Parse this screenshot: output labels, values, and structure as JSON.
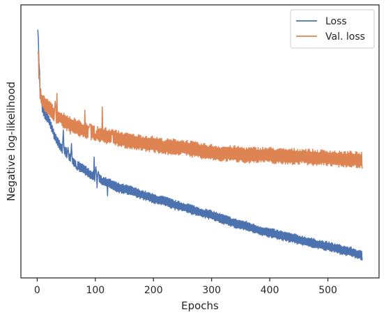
{
  "chart_data": {
    "type": "line",
    "title": "",
    "xlabel": "Epochs",
    "ylabel": "Negative log-likelihood",
    "xlim": [
      -28,
      588
    ],
    "ylim": [
      0,
      1
    ],
    "x_ticks": [
      0,
      100,
      200,
      300,
      400,
      500
    ],
    "y_tick_labels_shown": false,
    "grid": false,
    "legend_position": "top-right",
    "series": [
      {
        "name": "Loss",
        "color": "#4c72b0",
        "oscillation_amplitude": 0.018,
        "keypoints": [
          [
            1,
            0.92
          ],
          [
            3,
            0.8
          ],
          [
            5,
            0.7
          ],
          [
            8,
            0.63
          ],
          [
            12,
            0.6
          ],
          [
            16,
            0.59
          ],
          [
            20,
            0.58
          ],
          [
            25,
            0.55
          ],
          [
            30,
            0.52
          ],
          [
            40,
            0.48
          ],
          [
            50,
            0.46
          ],
          [
            60,
            0.43
          ],
          [
            70,
            0.41
          ],
          [
            80,
            0.4
          ],
          [
            90,
            0.38
          ],
          [
            100,
            0.37
          ],
          [
            110,
            0.36
          ],
          [
            120,
            0.35
          ],
          [
            140,
            0.33
          ],
          [
            160,
            0.32
          ],
          [
            180,
            0.305
          ],
          [
            200,
            0.29
          ],
          [
            220,
            0.28
          ],
          [
            240,
            0.265
          ],
          [
            260,
            0.255
          ],
          [
            280,
            0.24
          ],
          [
            300,
            0.23
          ],
          [
            320,
            0.215
          ],
          [
            340,
            0.2
          ],
          [
            360,
            0.19
          ],
          [
            380,
            0.175
          ],
          [
            400,
            0.165
          ],
          [
            420,
            0.155
          ],
          [
            440,
            0.145
          ],
          [
            460,
            0.135
          ],
          [
            480,
            0.125
          ],
          [
            500,
            0.115
          ],
          [
            520,
            0.105
          ],
          [
            540,
            0.095
          ],
          [
            559,
            0.08
          ]
        ]
      },
      {
        "name": "Val. loss",
        "color": "#dd8452",
        "oscillation_amplitude": 0.03,
        "keypoints": [
          [
            1,
            0.85
          ],
          [
            3,
            0.75
          ],
          [
            5,
            0.68
          ],
          [
            8,
            0.65
          ],
          [
            12,
            0.64
          ],
          [
            16,
            0.63
          ],
          [
            20,
            0.62
          ],
          [
            30,
            0.6
          ],
          [
            40,
            0.58
          ],
          [
            50,
            0.57
          ],
          [
            60,
            0.56
          ],
          [
            80,
            0.54
          ],
          [
            100,
            0.53
          ],
          [
            120,
            0.52
          ],
          [
            140,
            0.51
          ],
          [
            160,
            0.5
          ],
          [
            180,
            0.495
          ],
          [
            200,
            0.49
          ],
          [
            220,
            0.48
          ],
          [
            240,
            0.48
          ],
          [
            260,
            0.475
          ],
          [
            280,
            0.465
          ],
          [
            300,
            0.46
          ],
          [
            320,
            0.455
          ],
          [
            340,
            0.455
          ],
          [
            360,
            0.45
          ],
          [
            380,
            0.45
          ],
          [
            400,
            0.45
          ],
          [
            420,
            0.445
          ],
          [
            440,
            0.445
          ],
          [
            460,
            0.445
          ],
          [
            480,
            0.44
          ],
          [
            500,
            0.44
          ],
          [
            520,
            0.435
          ],
          [
            540,
            0.435
          ],
          [
            559,
            0.43
          ]
        ]
      }
    ]
  }
}
